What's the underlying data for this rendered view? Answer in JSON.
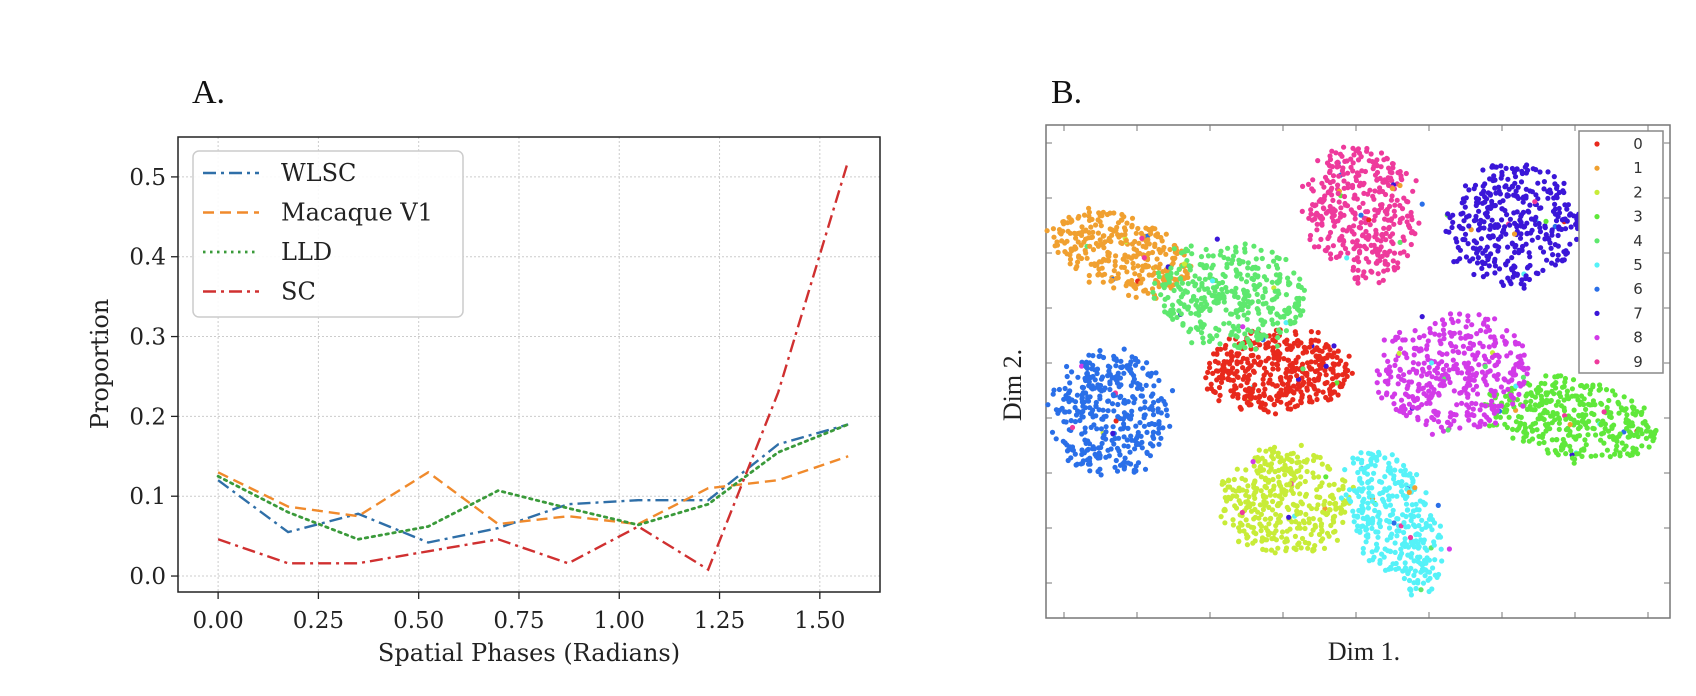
{
  "chart_data": [
    {
      "panel_label": "A.",
      "type": "line",
      "xlabel": "Spatial Phases (Radians)",
      "ylabel": "Proportion",
      "xlim": [
        -0.1,
        1.65
      ],
      "ylim": [
        -0.02,
        0.55
      ],
      "xticks": [
        0.0,
        0.25,
        0.5,
        0.75,
        1.0,
        1.25,
        1.5
      ],
      "xtick_labels": [
        "0.00",
        "0.25",
        "0.50",
        "0.75",
        "1.00",
        "1.25",
        "1.50"
      ],
      "yticks": [
        0.0,
        0.1,
        0.2,
        0.3,
        0.4,
        0.5
      ],
      "ytick_labels": [
        "0.0",
        "0.1",
        "0.2",
        "0.3",
        "0.4",
        "0.5"
      ],
      "grid": true,
      "legend_position": "top-left",
      "x": [
        0.0,
        0.1745,
        0.349,
        0.5236,
        0.6981,
        0.8727,
        1.0472,
        1.2217,
        1.3963,
        1.5708
      ],
      "series": [
        {
          "name": "WLSC",
          "color": "#2f6fa8",
          "dash": "dashdot",
          "values": [
            0.12,
            0.055,
            0.078,
            0.042,
            0.06,
            0.09,
            0.095,
            0.095,
            0.165,
            0.19
          ]
        },
        {
          "name": "Macaque V1",
          "color": "#f08a2c",
          "dash": "dashed",
          "values": [
            0.13,
            0.087,
            0.075,
            0.13,
            0.065,
            0.075,
            0.065,
            0.11,
            0.12,
            0.15
          ]
        },
        {
          "name": "LLD",
          "color": "#3a9a3a",
          "dash": "dotted",
          "values": [
            0.125,
            0.08,
            0.046,
            0.062,
            0.107,
            0.085,
            0.064,
            0.09,
            0.155,
            0.19
          ]
        },
        {
          "name": "SC",
          "color": "#d03030",
          "dash": "dashdot",
          "values": [
            0.046,
            0.016,
            0.016,
            0.031,
            0.046,
            0.016,
            0.062,
            0.008,
            0.23,
            0.52
          ]
        }
      ]
    },
    {
      "panel_label": "B.",
      "type": "scatter",
      "xlabel": "Dim 1.",
      "ylabel": "Dim 2.",
      "legend_position": "top-right",
      "classes": [
        {
          "label": "0",
          "color": "#e8291c",
          "cx": 2.9,
          "cy": 3.5,
          "rx": 1.0,
          "ry": 0.6,
          "n": 420
        },
        {
          "label": "1",
          "color": "#f0a030",
          "cx": 0.75,
          "cy": 5.35,
          "rx": 1.0,
          "ry": 0.55,
          "rot": -0.45,
          "n": 320
        },
        {
          "label": "2",
          "color": "#c8ec38",
          "cx": 3.0,
          "cy": 1.5,
          "rx": 0.9,
          "ry": 0.8,
          "n": 380
        },
        {
          "label": "3",
          "color": "#5fe83a",
          "cx": 6.95,
          "cy": 2.75,
          "rx": 1.2,
          "ry": 0.6,
          "rot": -0.25,
          "n": 380
        },
        {
          "label": "4",
          "color": "#5ee86e",
          "cx": 2.25,
          "cy": 4.7,
          "rx": 1.05,
          "ry": 0.8,
          "rot": -0.3,
          "n": 380
        },
        {
          "label": "5",
          "color": "#55f2f8",
          "cx": 4.5,
          "cy": 1.2,
          "rx": 0.55,
          "ry": 1.15,
          "rot": 0.35,
          "n": 340
        },
        {
          "label": "6",
          "color": "#2a6fe8",
          "cx": 0.6,
          "cy": 2.85,
          "rx": 0.8,
          "ry": 0.95,
          "n": 380
        },
        {
          "label": "7",
          "color": "#3a16d8",
          "cx": 6.15,
          "cy": 5.75,
          "rx": 0.9,
          "ry": 0.95,
          "n": 380
        },
        {
          "label": "8",
          "color": "#d23ae8",
          "cx": 5.3,
          "cy": 3.5,
          "rx": 1.05,
          "ry": 0.9,
          "n": 420
        },
        {
          "label": "9",
          "color": "#ee3a9c",
          "cx": 4.05,
          "cy": 5.95,
          "rx": 0.75,
          "ry": 1.05,
          "rot": 0.15,
          "n": 380
        }
      ]
    }
  ]
}
